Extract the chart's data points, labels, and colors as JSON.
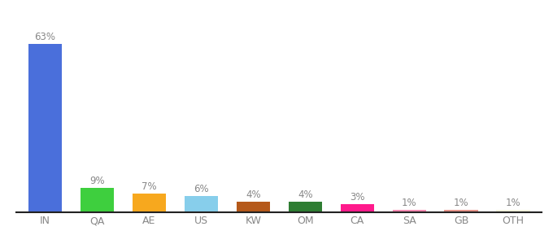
{
  "categories": [
    "IN",
    "QA",
    "AE",
    "US",
    "KW",
    "OM",
    "CA",
    "SA",
    "GB",
    "OTH"
  ],
  "values": [
    63,
    9,
    7,
    6,
    4,
    4,
    3,
    1,
    1,
    1
  ],
  "bar_colors": [
    "#4a6fdb",
    "#3ecf3e",
    "#f7a81e",
    "#87ceeb",
    "#b5591a",
    "#2e7d32",
    "#ff1a8c",
    "#ff8cb4",
    "#e8968c",
    "#f5f5e0"
  ],
  "labels": [
    "63%",
    "9%",
    "7%",
    "6%",
    "4%",
    "4%",
    "3%",
    "1%",
    "1%",
    "1%"
  ],
  "background_color": "#ffffff",
  "ylim": [
    0,
    72
  ],
  "bar_width": 0.65,
  "label_color": "#888888",
  "label_fontsize": 8.5,
  "tick_fontsize": 9,
  "tick_color": "#888888",
  "spine_color": "#222222"
}
